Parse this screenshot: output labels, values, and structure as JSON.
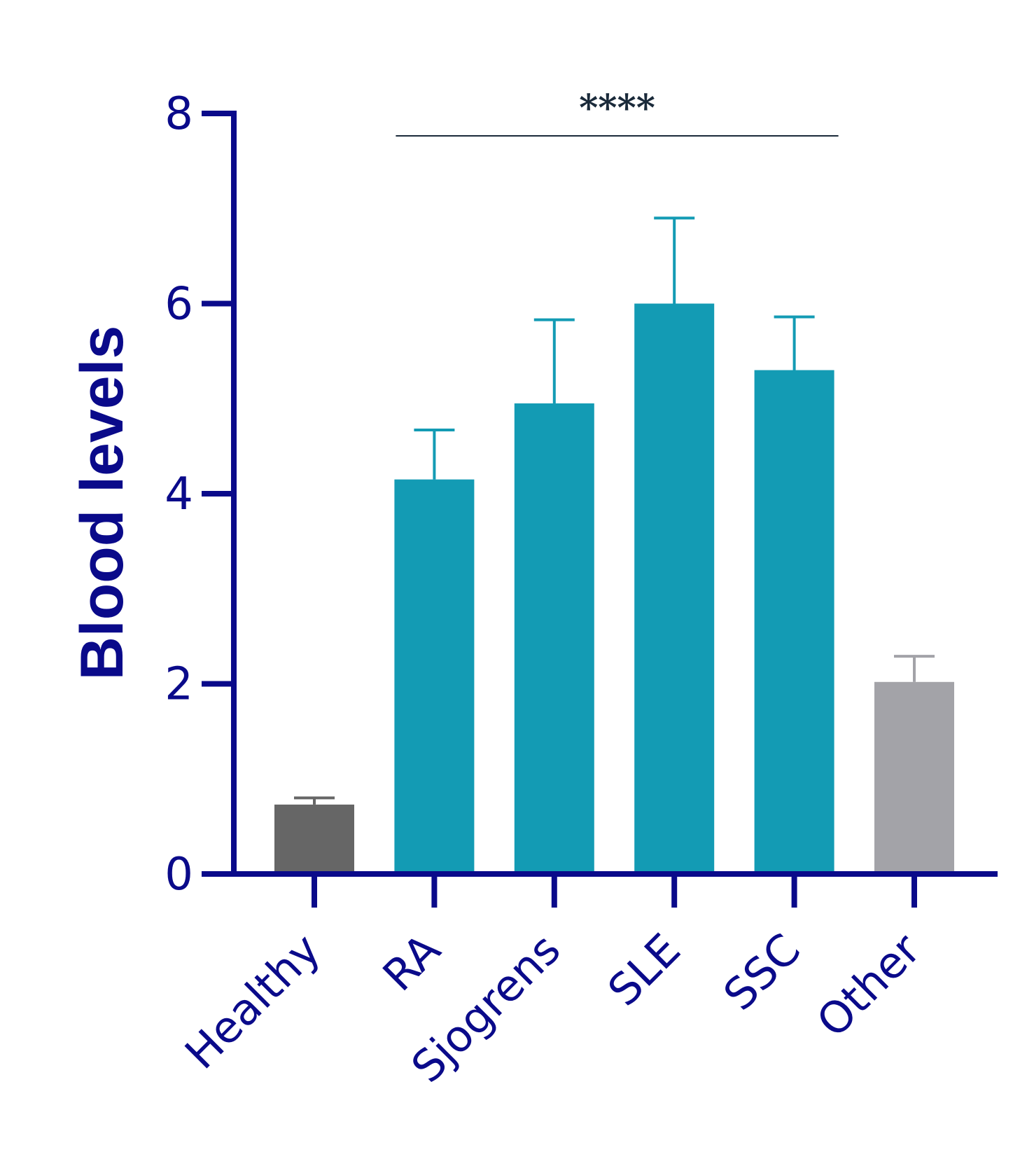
{
  "chart_data": {
    "type": "bar",
    "ylabel": "Blood levels",
    "xlabel": "",
    "ylim": [
      0,
      8
    ],
    "yticks": [
      "0",
      "2",
      "4",
      "6",
      "8"
    ],
    "categories": [
      "Healthy",
      "RA",
      "Sjogrens",
      "SLE",
      "SSC",
      "Other"
    ],
    "values": [
      0.73,
      4.15,
      4.95,
      6.0,
      5.3,
      2.02
    ],
    "errors": [
      0.07,
      0.52,
      0.88,
      0.9,
      0.56,
      0.27
    ],
    "bar_colors": [
      "#666666",
      "#139bb4",
      "#139bb4",
      "#139bb4",
      "#139bb4",
      "#a3a3a8"
    ],
    "significance": {
      "label": "****",
      "from": "RA",
      "to": "SSC"
    },
    "axis_color": "#0a0a8a",
    "grid": false
  }
}
